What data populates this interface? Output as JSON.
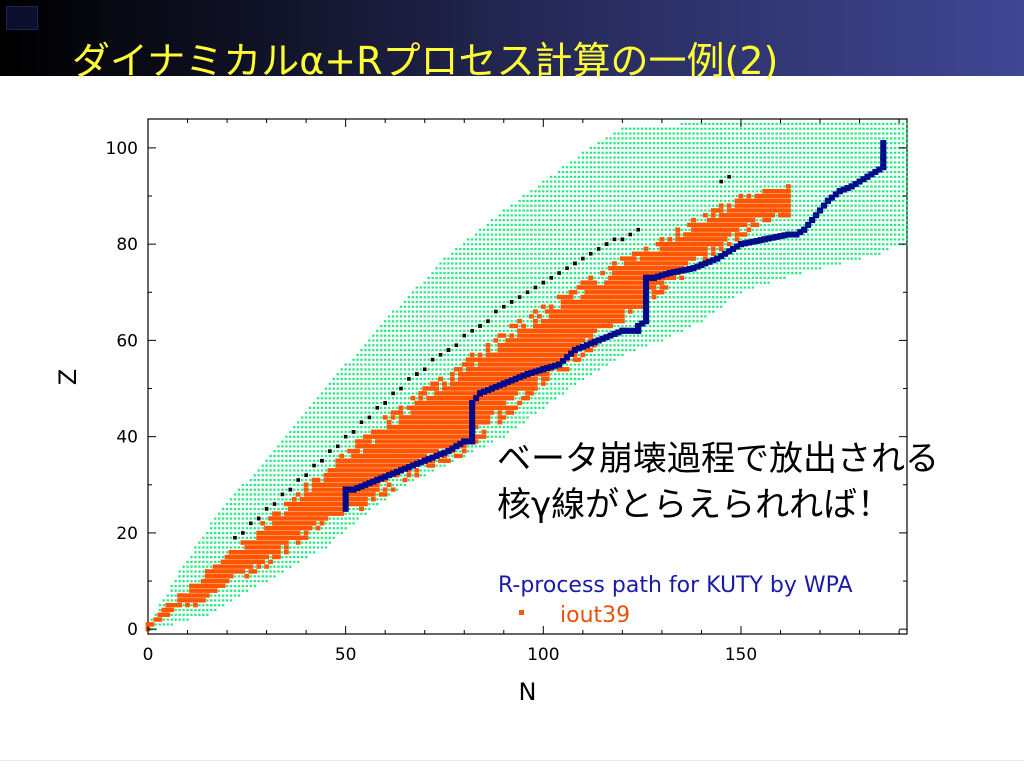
{
  "slide": {
    "title": "ダイナミカルα+Rプロセス計算の一例(2)",
    "caption_line1": "ベータ崩壊過程で放出される",
    "caption_line2": "核γ線がとらえられれば！"
  },
  "chart_data": {
    "type": "scatter",
    "xlabel": "N",
    "ylabel": "Z",
    "xlim": [
      0,
      192
    ],
    "ylim": [
      -1,
      106
    ],
    "xticks": [
      0,
      50,
      100,
      150
    ],
    "yticks": [
      0,
      20,
      40,
      60,
      80,
      100
    ],
    "legend": {
      "placement": "bottom-right",
      "title": "R-process path for KUTY by WPA",
      "entry": "iout39"
    },
    "colors": {
      "nuclides": "#28e884",
      "iout39": "#ff5500",
      "rpath": "#000a8c",
      "stable": "#000000",
      "legend_title": "#1a1aa6",
      "legend_entry": "#e8500e"
    },
    "series": [
      {
        "role": "nuclide-region",
        "kind": "band",
        "style": "green-dots",
        "lower": [
          [
            2,
            0
          ],
          [
            15,
            3
          ],
          [
            30,
            10
          ],
          [
            45,
            17
          ],
          [
            55,
            24
          ],
          [
            65,
            30
          ],
          [
            80,
            36
          ],
          [
            90,
            40
          ],
          [
            100,
            46
          ],
          [
            110,
            52
          ],
          [
            120,
            57
          ],
          [
            130,
            60
          ],
          [
            140,
            64
          ],
          [
            150,
            70
          ],
          [
            165,
            74
          ],
          [
            175,
            76
          ],
          [
            185,
            78
          ],
          [
            190,
            80
          ]
        ],
        "upper": [
          [
            0,
            1
          ],
          [
            8,
            12
          ],
          [
            16,
            22
          ],
          [
            24,
            30
          ],
          [
            32,
            37
          ],
          [
            40,
            45
          ],
          [
            50,
            55
          ],
          [
            62,
            66
          ],
          [
            75,
            77
          ],
          [
            90,
            87
          ],
          [
            100,
            93
          ],
          [
            110,
            99
          ],
          [
            120,
            104
          ],
          [
            135,
            105
          ],
          [
            150,
            105
          ],
          [
            165,
            105
          ],
          [
            185,
            105
          ],
          [
            192,
            105
          ]
        ]
      },
      {
        "role": "iout39",
        "name": "iout39",
        "kind": "band",
        "style": "orange-dots",
        "lower": [
          [
            0,
            0
          ],
          [
            5,
            3
          ],
          [
            12,
            5
          ],
          [
            20,
            9
          ],
          [
            30,
            13
          ],
          [
            40,
            19
          ],
          [
            50,
            23
          ],
          [
            60,
            28
          ],
          [
            70,
            33
          ],
          [
            80,
            36
          ],
          [
            85,
            40
          ],
          [
            95,
            47
          ],
          [
            105,
            53
          ],
          [
            115,
            60
          ],
          [
            125,
            67
          ],
          [
            135,
            73
          ],
          [
            145,
            79
          ],
          [
            155,
            84
          ],
          [
            162,
            86
          ]
        ],
        "upper": [
          [
            0,
            1
          ],
          [
            5,
            5
          ],
          [
            12,
            10
          ],
          [
            20,
            16
          ],
          [
            30,
            23
          ],
          [
            40,
            30
          ],
          [
            50,
            37
          ],
          [
            60,
            44
          ],
          [
            70,
            50
          ],
          [
            80,
            56
          ],
          [
            90,
            62
          ],
          [
            100,
            67
          ],
          [
            110,
            72
          ],
          [
            120,
            77
          ],
          [
            130,
            81
          ],
          [
            140,
            86
          ],
          [
            150,
            90
          ],
          [
            158,
            92
          ],
          [
            162,
            92
          ]
        ]
      },
      {
        "role": "r-process-path",
        "kind": "path",
        "points": [
          [
            50,
            25
          ],
          [
            50,
            29
          ],
          [
            52,
            29
          ],
          [
            58,
            31
          ],
          [
            64,
            33
          ],
          [
            70,
            35
          ],
          [
            76,
            37
          ],
          [
            80,
            39
          ],
          [
            82,
            39
          ],
          [
            82,
            42
          ],
          [
            82,
            47
          ],
          [
            84,
            49
          ],
          [
            90,
            51
          ],
          [
            96,
            53
          ],
          [
            100,
            54
          ],
          [
            104,
            55
          ],
          [
            108,
            58
          ],
          [
            114,
            60
          ],
          [
            120,
            62
          ],
          [
            124,
            62
          ],
          [
            124,
            63
          ],
          [
            126,
            64
          ],
          [
            126,
            68
          ],
          [
            126,
            73
          ],
          [
            128,
            73
          ],
          [
            132,
            74
          ],
          [
            138,
            75
          ],
          [
            144,
            77
          ],
          [
            150,
            80
          ],
          [
            156,
            81
          ],
          [
            162,
            82
          ],
          [
            164,
            82
          ],
          [
            166,
            83
          ],
          [
            168,
            85
          ],
          [
            170,
            87
          ],
          [
            172,
            89
          ],
          [
            175,
            91
          ],
          [
            178,
            92
          ],
          [
            182,
            94
          ],
          [
            186,
            96
          ],
          [
            186,
            98
          ],
          [
            186,
            101
          ]
        ]
      },
      {
        "role": "stable-line",
        "kind": "path",
        "points": [
          [
            22,
            19
          ],
          [
            28,
            23
          ],
          [
            36,
            29
          ],
          [
            44,
            35
          ],
          [
            52,
            41
          ],
          [
            60,
            47
          ],
          [
            68,
            53
          ],
          [
            76,
            58
          ],
          [
            84,
            63
          ],
          [
            92,
            68
          ],
          [
            100,
            72
          ],
          [
            108,
            76
          ],
          [
            116,
            80
          ],
          [
            120,
            81
          ],
          [
            124,
            83
          ]
        ]
      },
      {
        "role": "stable-line",
        "kind": "path",
        "points": [
          [
            145,
            93
          ],
          [
            148,
            94
          ]
        ]
      }
    ]
  }
}
